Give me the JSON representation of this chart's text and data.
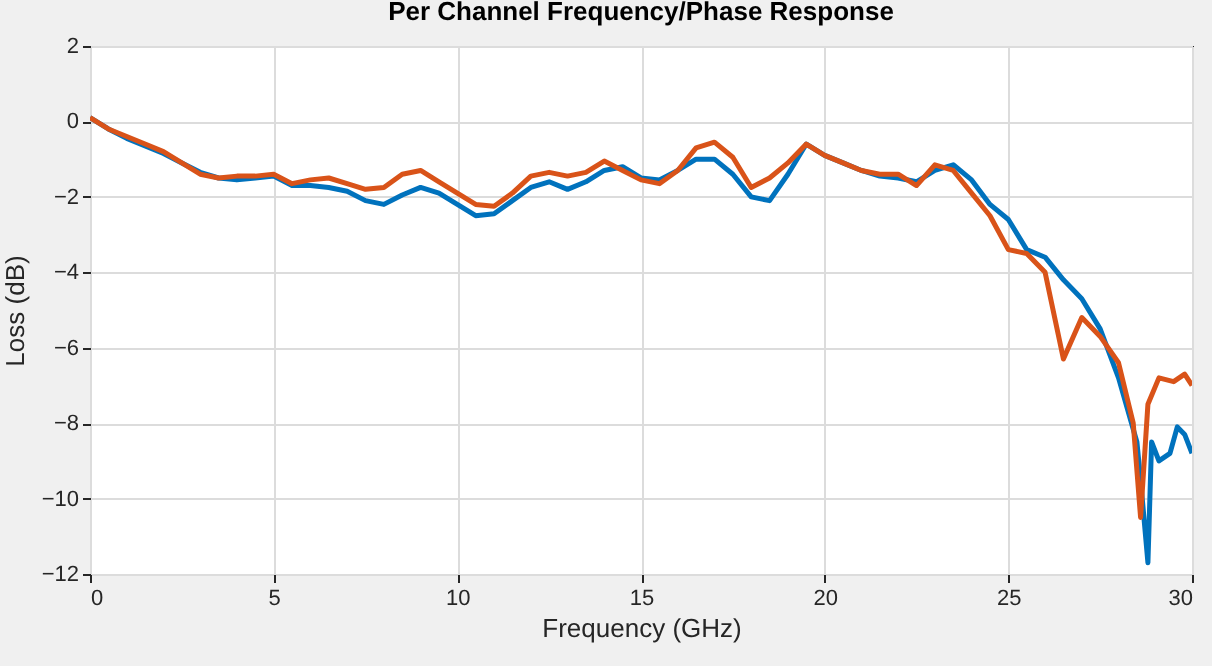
{
  "chart_data": {
    "type": "line",
    "title": "Per Channel Frequency/Phase Response",
    "xlabel": "Frequency (GHz)",
    "ylabel": "Loss (dB)",
    "xlim": [
      0,
      30
    ],
    "xticks": [
      0,
      5,
      10,
      15,
      20,
      25,
      30
    ],
    "ylim": [
      -12,
      2
    ],
    "yticks": [
      -12,
      -10,
      -8,
      -6,
      -4,
      -2,
      0,
      2
    ],
    "grid": true,
    "line_style": "solid",
    "marker": "none",
    "series": [
      {
        "color": "#0072bd",
        "x": [
          0,
          0.5,
          1,
          1.5,
          2,
          2.5,
          3,
          3.5,
          4,
          4.5,
          5,
          5.5,
          6,
          6.5,
          7,
          7.5,
          8,
          8.5,
          9,
          9.5,
          10,
          10.5,
          11,
          11.5,
          12,
          12.5,
          13,
          13.5,
          14,
          14.5,
          15,
          15.5,
          16,
          16.5,
          17,
          17.5,
          18,
          18.5,
          19,
          19.5,
          20,
          20.5,
          21,
          21.5,
          22,
          22.5,
          23,
          23.5,
          24,
          24.5,
          25,
          25.5,
          26,
          26.5,
          27,
          27.5,
          28,
          28.5,
          28.6,
          28.8,
          28.9,
          29.1,
          29.4,
          29.6,
          29.8,
          30
        ],
        "values": [
          0.1,
          -0.2,
          -0.45,
          -0.65,
          -0.85,
          -1.1,
          -1.35,
          -1.5,
          -1.55,
          -1.5,
          -1.45,
          -1.7,
          -1.7,
          -1.75,
          -1.85,
          -2.1,
          -2.2,
          -1.95,
          -1.75,
          -1.9,
          -2.2,
          -2.5,
          -2.45,
          -2.1,
          -1.75,
          -1.6,
          -1.8,
          -1.6,
          -1.3,
          -1.2,
          -1.5,
          -1.55,
          -1.3,
          -1.0,
          -1.0,
          -1.4,
          -2.0,
          -2.1,
          -1.4,
          -0.6,
          -0.9,
          -1.1,
          -1.3,
          -1.45,
          -1.5,
          -1.6,
          -1.3,
          -1.15,
          -1.55,
          -2.2,
          -2.6,
          -3.4,
          -3.6,
          -4.2,
          -4.7,
          -5.5,
          -6.8,
          -8.5,
          -9.5,
          -11.7,
          -8.5,
          -9.0,
          -8.8,
          -8.1,
          -8.3,
          -8.8
        ]
      },
      {
        "color": "#d95319",
        "x": [
          0,
          0.5,
          1,
          1.5,
          2,
          2.5,
          3,
          3.5,
          4,
          4.5,
          5,
          5.5,
          6,
          6.5,
          7,
          7.5,
          8,
          8.5,
          9,
          9.5,
          10,
          10.5,
          11,
          11.5,
          12,
          12.5,
          13,
          13.5,
          14,
          14.5,
          15,
          15.5,
          16,
          16.5,
          17,
          17.5,
          18,
          18.5,
          19,
          19.5,
          20,
          20.5,
          21,
          21.5,
          22,
          22.5,
          23,
          23.5,
          24,
          24.5,
          25,
          25.5,
          26,
          26.5,
          27,
          27.5,
          28,
          28.4,
          28.6,
          28.8,
          29.1,
          29.5,
          29.8,
          30
        ],
        "values": [
          0.1,
          -0.2,
          -0.4,
          -0.6,
          -0.8,
          -1.1,
          -1.4,
          -1.5,
          -1.45,
          -1.45,
          -1.4,
          -1.65,
          -1.55,
          -1.5,
          -1.65,
          -1.8,
          -1.75,
          -1.4,
          -1.3,
          -1.6,
          -1.9,
          -2.2,
          -2.25,
          -1.9,
          -1.45,
          -1.35,
          -1.45,
          -1.35,
          -1.05,
          -1.3,
          -1.55,
          -1.65,
          -1.3,
          -0.7,
          -0.55,
          -0.95,
          -1.75,
          -1.5,
          -1.1,
          -0.6,
          -0.9,
          -1.1,
          -1.3,
          -1.4,
          -1.4,
          -1.7,
          -1.15,
          -1.3,
          -1.9,
          -2.5,
          -3.4,
          -3.5,
          -4.0,
          -6.3,
          -5.2,
          -5.7,
          -6.4,
          -8.0,
          -10.5,
          -7.5,
          -6.8,
          -6.9,
          -6.7,
          -7.0
        ]
      }
    ]
  }
}
